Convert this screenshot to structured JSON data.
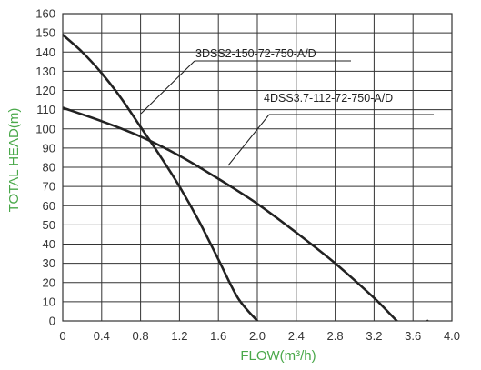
{
  "chart_data": {
    "type": "line",
    "xlabel": "FLOW(m³/h)",
    "ylabel": "TOTAL HEAD(m)",
    "xlim": [
      0,
      4.0
    ],
    "ylim": [
      0,
      160
    ],
    "xticks": [
      "0",
      "0.4",
      "0.8",
      "1.2",
      "1.6",
      "2.0",
      "2.4",
      "2.8",
      "3.2",
      "3.6",
      "4.0"
    ],
    "yticks": [
      "0",
      "10",
      "20",
      "30",
      "40",
      "50",
      "60",
      "70",
      "80",
      "90",
      "100",
      "110",
      "120",
      "130",
      "140",
      "150",
      "160"
    ],
    "grid": true,
    "series": [
      {
        "name": "3DSS2-150-72-750-A/D",
        "x": [
          0,
          0.2,
          0.4,
          0.6,
          0.8,
          1.0,
          1.2,
          1.4,
          1.6,
          1.8,
          2.0
        ],
        "values": [
          149,
          140,
          129,
          116,
          101,
          86,
          70,
          52,
          32,
          12,
          0
        ]
      },
      {
        "name": "4DSS3.7-112-72-750-A/D",
        "x": [
          0,
          0.4,
          0.8,
          1.2,
          1.6,
          2.0,
          2.4,
          2.8,
          3.2,
          3.6,
          3.75
        ],
        "values": [
          111,
          104,
          96,
          86,
          74,
          61,
          46,
          30,
          12,
          -7,
          0
        ]
      }
    ]
  }
}
